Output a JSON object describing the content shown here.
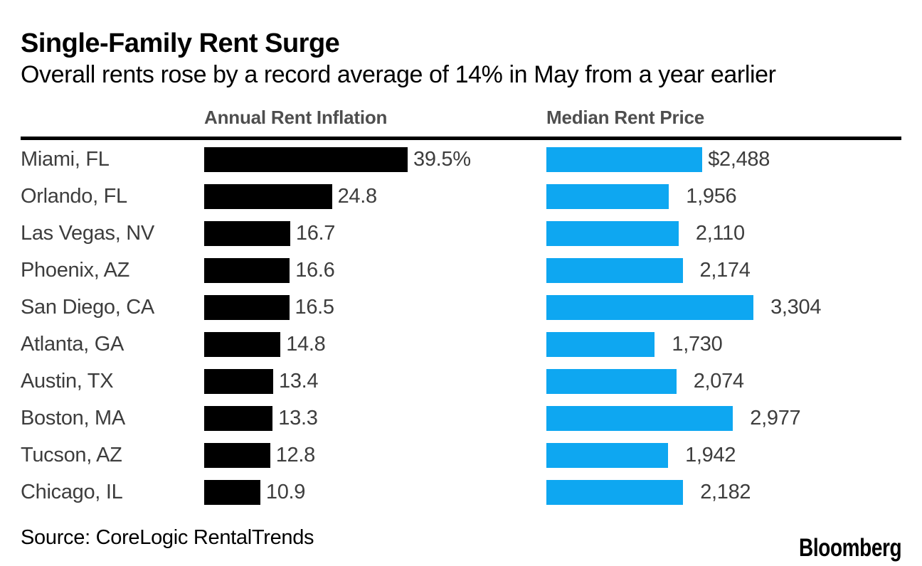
{
  "header": {
    "title": "Single-Family Rent Surge",
    "subtitle": "Overall rents rose by a record average of 14% in May from a year earlier"
  },
  "chart_data": {
    "type": "bar",
    "orientation": "horizontal",
    "grid": false,
    "categories": [
      "Miami, FL",
      "Orlando, FL",
      "Las Vegas, NV",
      "Phoenix, AZ",
      "San Diego, CA",
      "Atlanta, GA",
      "Austin, TX",
      "Boston, MA",
      "Tucson, AZ",
      "Chicago, IL"
    ],
    "series": [
      {
        "name": "Annual Rent Inflation",
        "unit": "%",
        "values": [
          39.5,
          24.8,
          16.7,
          16.6,
          16.5,
          14.8,
          13.4,
          13.3,
          12.8,
          10.9
        ],
        "labels": [
          "39.5%",
          "24.8",
          "16.7",
          "16.6",
          "16.5",
          "14.8",
          "13.4",
          "13.3",
          "12.8",
          "10.9"
        ],
        "axis_max": 39.5,
        "color": "#000000"
      },
      {
        "name": "Median Rent Price",
        "unit": "USD",
        "values": [
          2488,
          1956,
          2110,
          2174,
          3304,
          1730,
          2074,
          2977,
          1942,
          2182
        ],
        "labels": [
          "$2,488",
          "1,956",
          "2,110",
          "2,174",
          "3,304",
          "1,730",
          "2,074",
          "2,977",
          "1,942",
          "2,182"
        ],
        "axis_max": 3304,
        "color": "#0ea7f1"
      }
    ],
    "legend_position": "column-headers-above-chart",
    "value_labels": "right-of-bar"
  },
  "footer": {
    "source": "Source: CoreLogic RentalTrends",
    "brand": "Bloomberg"
  },
  "colors": {
    "background": "#ffffff",
    "inflation_bar": "#000000",
    "price_bar": "#0ea7f1",
    "title_text": "#000000",
    "column_header_text": "#4e4e4e",
    "label_text": "#3d3d3d",
    "divider_rule": "#000000"
  }
}
